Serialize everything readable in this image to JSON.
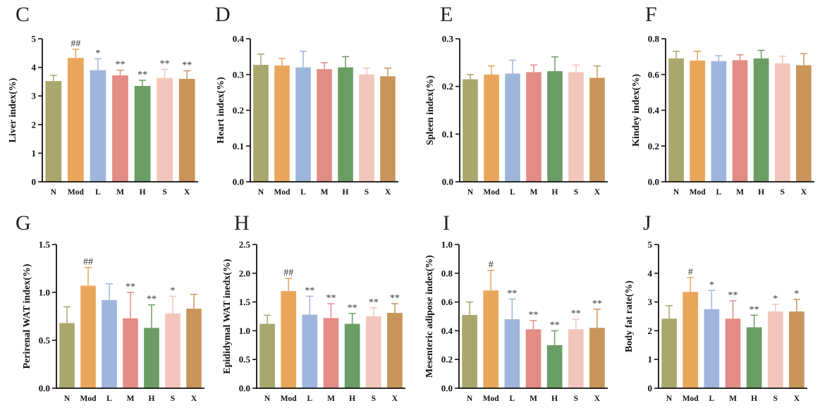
{
  "colors": [
    "#a8a86e",
    "#e9a65a",
    "#9fb6dc",
    "#e38c86",
    "#6a9d63",
    "#f2c6bc",
    "#c9955a"
  ],
  "chart_data": [
    {
      "type": "bar",
      "panel": "C",
      "ylabel": "Liver index(%)",
      "ylim": [
        0,
        5
      ],
      "yticks": [
        "0",
        "1",
        "2",
        "3",
        "4",
        "5"
      ],
      "categories": [
        "N",
        "Mod",
        "L",
        "M",
        "H",
        "S",
        "X"
      ],
      "values": [
        3.52,
        4.33,
        3.9,
        3.72,
        3.35,
        3.63,
        3.6
      ],
      "errors": [
        0.2,
        0.3,
        0.4,
        0.18,
        0.2,
        0.3,
        0.28
      ],
      "annotations": [
        "",
        "##",
        "*",
        "**",
        "**",
        "**",
        "**"
      ]
    },
    {
      "type": "bar",
      "panel": "D",
      "ylabel": "Heart index(%)",
      "ylim": [
        0,
        0.4
      ],
      "yticks": [
        "0.0",
        "0.1",
        "0.2",
        "0.3",
        "0.4"
      ],
      "categories": [
        "N",
        "Mod",
        "L",
        "M",
        "H",
        "S",
        "X"
      ],
      "values": [
        0.327,
        0.325,
        0.32,
        0.315,
        0.32,
        0.3,
        0.295
      ],
      "errors": [
        0.03,
        0.02,
        0.045,
        0.018,
        0.03,
        0.018,
        0.023
      ],
      "annotations": [
        "",
        "",
        "",
        "",
        "",
        "",
        ""
      ]
    },
    {
      "type": "bar",
      "panel": "E",
      "ylabel": "Spleen index(%)",
      "ylim": [
        0,
        0.3
      ],
      "yticks": [
        "0.0",
        "0.1",
        "0.2",
        "0.3"
      ],
      "categories": [
        "N",
        "Mod",
        "L",
        "M",
        "H",
        "S",
        "X"
      ],
      "values": [
        0.215,
        0.225,
        0.227,
        0.23,
        0.232,
        0.23,
        0.218
      ],
      "errors": [
        0.01,
        0.018,
        0.028,
        0.015,
        0.03,
        0.015,
        0.025
      ],
      "annotations": [
        "",
        "",
        "",
        "",
        "",
        "",
        ""
      ]
    },
    {
      "type": "bar",
      "panel": "F",
      "ylabel": "Kindey index(%)",
      "ylim": [
        0,
        0.8
      ],
      "yticks": [
        "0.0",
        "0.2",
        "0.4",
        "0.6",
        "0.8"
      ],
      "categories": [
        "N",
        "Mod",
        "L",
        "M",
        "H",
        "S",
        "X"
      ],
      "values": [
        0.69,
        0.678,
        0.675,
        0.68,
        0.69,
        0.662,
        0.652
      ],
      "errors": [
        0.04,
        0.052,
        0.03,
        0.03,
        0.045,
        0.04,
        0.065
      ],
      "annotations": [
        "",
        "",
        "",
        "",
        "",
        "",
        ""
      ]
    },
    {
      "type": "bar",
      "panel": "G",
      "ylabel": "Perirenal WAT index(%)",
      "ylim": [
        0,
        1.5
      ],
      "yticks": [
        "0.0",
        "0.5",
        "1.0",
        "1.5"
      ],
      "categories": [
        "N",
        "Mod",
        "L",
        "M",
        "H",
        "S",
        "X"
      ],
      "values": [
        0.68,
        1.07,
        0.92,
        0.73,
        0.63,
        0.78,
        0.83
      ],
      "errors": [
        0.17,
        0.19,
        0.17,
        0.27,
        0.24,
        0.18,
        0.15
      ],
      "annotations": [
        "",
        "##",
        "",
        "**",
        "**",
        "*",
        ""
      ]
    },
    {
      "type": "bar",
      "panel": "H",
      "ylabel": "Epididymal WAT inedx(%)",
      "ylim": [
        0,
        2.5
      ],
      "yticks": [
        "0.0",
        "0.5",
        "1.0",
        "1.5",
        "2.0",
        "2.5"
      ],
      "categories": [
        "N",
        "Mod",
        "L",
        "M",
        "H",
        "S",
        "X"
      ],
      "values": [
        1.12,
        1.69,
        1.28,
        1.22,
        1.12,
        1.25,
        1.31
      ],
      "errors": [
        0.15,
        0.22,
        0.32,
        0.25,
        0.18,
        0.15,
        0.16
      ],
      "annotations": [
        "",
        "##",
        "**",
        "**",
        "**",
        "**",
        "**"
      ]
    },
    {
      "type": "bar",
      "panel": "I",
      "ylabel": "Mesenteric adipose index(%)",
      "ylim": [
        0,
        1.0
      ],
      "yticks": [
        "0.0",
        "0.2",
        "0.4",
        "0.6",
        "0.8",
        "1.0"
      ],
      "categories": [
        "N",
        "Mod",
        "L",
        "M",
        "H",
        "S",
        "X"
      ],
      "values": [
        0.51,
        0.68,
        0.48,
        0.41,
        0.3,
        0.41,
        0.42
      ],
      "errors": [
        0.09,
        0.14,
        0.14,
        0.06,
        0.1,
        0.07,
        0.13
      ],
      "annotations": [
        "",
        "#",
        "**",
        "**",
        "**",
        "**",
        "**"
      ]
    },
    {
      "type": "bar",
      "panel": "J",
      "ylabel": "Body fat rate(%)",
      "ylim": [
        0,
        5
      ],
      "yticks": [
        "0",
        "1",
        "2",
        "3",
        "4",
        "5"
      ],
      "categories": [
        "N",
        "Mod",
        "L",
        "M",
        "H",
        "S",
        "X"
      ],
      "values": [
        2.42,
        3.35,
        2.75,
        2.42,
        2.12,
        2.67,
        2.67
      ],
      "errors": [
        0.45,
        0.5,
        0.65,
        0.62,
        0.42,
        0.25,
        0.42
      ],
      "annotations": [
        "",
        "#",
        "*",
        "**",
        "**",
        "*",
        "*"
      ]
    }
  ]
}
